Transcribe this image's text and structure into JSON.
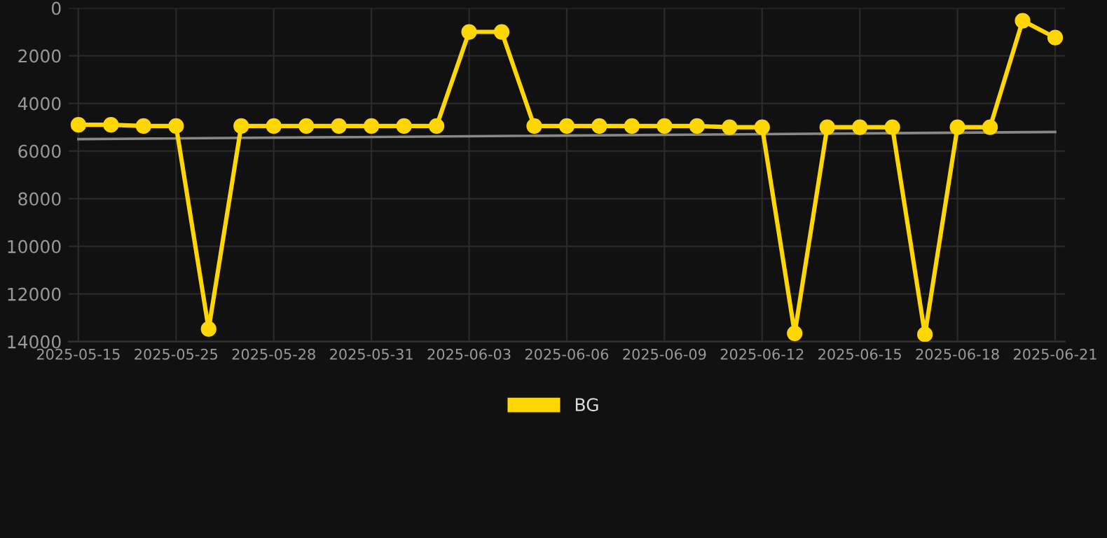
{
  "chart_data": {
    "type": "line",
    "categories": [
      "2025-05-15",
      null,
      null,
      "2025-05-25",
      null,
      null,
      "2025-05-28",
      null,
      null,
      "2025-05-31",
      null,
      null,
      "2025-06-03",
      null,
      null,
      "2025-06-06",
      null,
      null,
      "2025-06-09",
      null,
      null,
      "2025-06-12",
      null,
      null,
      "2025-06-15",
      null,
      null,
      "2025-06-18",
      null,
      null,
      "2025-06-21"
    ],
    "series": [
      {
        "name": "BG",
        "color": "#ffd700",
        "marker": "circle",
        "values": [
          4900,
          4900,
          4950,
          4950,
          13470,
          4950,
          4950,
          4950,
          4950,
          4950,
          4950,
          4950,
          1000,
          1000,
          4950,
          4950,
          4950,
          4950,
          4950,
          4950,
          5000,
          5000,
          13650,
          5000,
          5000,
          5000,
          13700,
          5000,
          5000,
          530,
          1240
        ]
      },
      {
        "type": "line",
        "color": "#888888",
        "marker": "none",
        "values": [
          5500,
          null,
          null,
          null,
          null,
          null,
          null,
          null,
          null,
          null,
          null,
          null,
          null,
          null,
          null,
          null,
          null,
          null,
          null,
          null,
          null,
          null,
          null,
          null,
          null,
          null,
          null,
          null,
          null,
          null,
          5200
        ]
      }
    ],
    "ylim": [
      14000,
      0
    ],
    "yticks": [
      0,
      2000,
      4000,
      6000,
      8000,
      10000,
      12000,
      14000
    ],
    "grid": true,
    "legend": "bottom"
  }
}
